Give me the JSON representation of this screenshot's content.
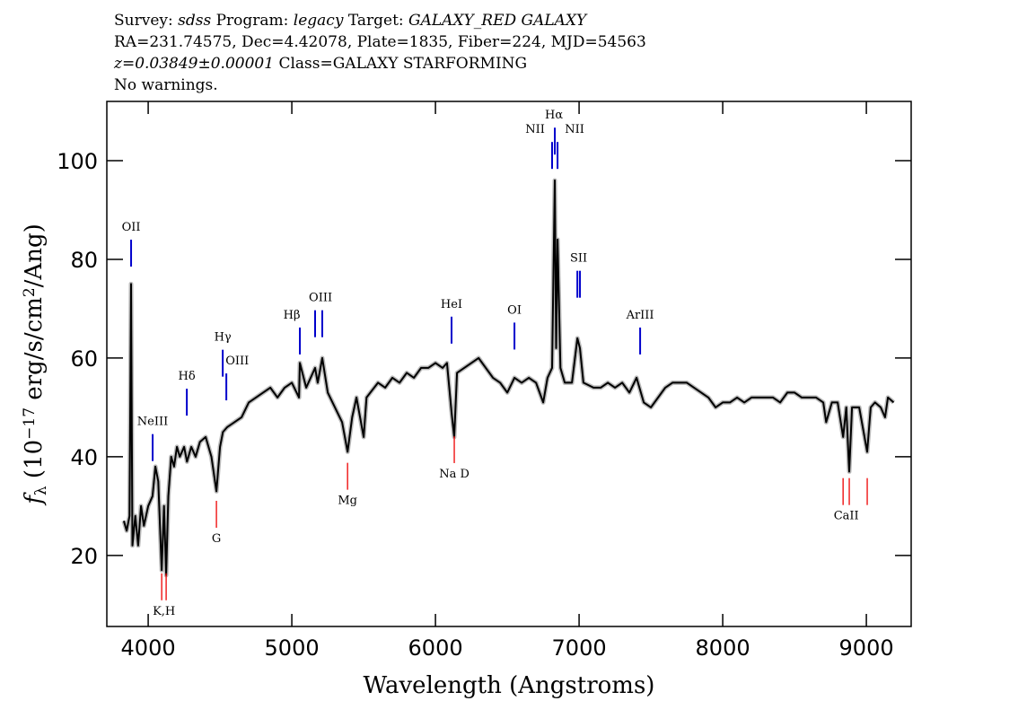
{
  "chart_data": {
    "type": "line",
    "header": [
      [
        {
          "text": "Survey: "
        },
        {
          "text": "sdss",
          "italic": true
        },
        {
          "text": " Program: "
        },
        {
          "text": "legacy",
          "italic": true
        },
        {
          "text": " Target: "
        },
        {
          "text": "GALAXY_RED GALAXY",
          "italic": true
        }
      ],
      [
        {
          "text": "RA=231.74575, Dec=4.42078, Plate=1835, Fiber=224, MJD=54563"
        }
      ],
      [
        {
          "text": "z=0.03849±0.00001",
          "italic": true
        },
        {
          "text": " Class=GALAXY STARFORMING"
        }
      ],
      [
        {
          "text": "No warnings."
        }
      ]
    ],
    "xlabel": "Wavelength (Angstroms)",
    "ylabel": [
      {
        "text": "f",
        "italic": true
      },
      {
        "text": "λ",
        "shift": "sub"
      },
      {
        "text": " (10"
      },
      {
        "text": "−17",
        "shift": "sup"
      },
      {
        "text": " erg/s/cm"
      },
      {
        "text": "2",
        "shift": "sup"
      },
      {
        "text": "/Ang)"
      }
    ],
    "xlim": [
      3712,
      9312
    ],
    "ylim": [
      5.6,
      112
    ],
    "xticks": [
      4000,
      5000,
      6000,
      7000,
      8000,
      9000
    ],
    "yticks": [
      20,
      40,
      60,
      80,
      100
    ],
    "series": [
      {
        "color": "#000000",
        "x": [
          3830,
          3850,
          3870,
          3881,
          3890,
          3910,
          3930,
          3950,
          3970,
          4000,
          4030,
          4050,
          4070,
          4094,
          4110,
          4125,
          4140,
          4160,
          4180,
          4200,
          4220,
          4250,
          4270,
          4300,
          4330,
          4360,
          4400,
          4440,
          4475,
          4500,
          4520,
          4550,
          4600,
          4650,
          4700,
          4750,
          4800,
          4850,
          4900,
          4950,
          5000,
          5050,
          5056,
          5100,
          5162,
          5180,
          5212,
          5250,
          5300,
          5350,
          5388,
          5420,
          5450,
          5500,
          5520,
          5600,
          5650,
          5700,
          5750,
          5800,
          5850,
          5900,
          5950,
          6000,
          6050,
          6080,
          6112,
          6131,
          6150,
          6200,
          6250,
          6300,
          6350,
          6400,
          6450,
          6500,
          6550,
          6600,
          6650,
          6700,
          6750,
          6780,
          6812,
          6831,
          6840,
          6850,
          6870,
          6900,
          6950,
          6988,
          7006,
          7030,
          7100,
          7150,
          7200,
          7250,
          7300,
          7350,
          7400,
          7450,
          7500,
          7550,
          7600,
          7650,
          7700,
          7750,
          7800,
          7850,
          7900,
          7950,
          8000,
          8050,
          8100,
          8150,
          8200,
          8250,
          8300,
          8350,
          8400,
          8450,
          8500,
          8550,
          8600,
          8650,
          8700,
          8720,
          8760,
          8800,
          8838,
          8860,
          8881,
          8900,
          8950,
          9006,
          9030,
          9060,
          9100,
          9130,
          9150,
          9190
        ],
        "values": [
          27,
          25,
          28,
          75,
          22,
          28,
          22,
          30,
          26,
          30,
          32,
          38,
          35,
          17,
          30,
          16,
          32,
          40,
          38,
          42,
          40,
          42,
          39,
          42,
          40,
          43,
          44,
          40,
          33,
          42,
          45,
          46,
          47,
          48,
          51,
          52,
          53,
          54,
          52,
          54,
          55,
          52,
          59,
          54,
          58,
          55,
          60,
          53,
          50,
          47,
          41,
          48,
          52,
          44,
          52,
          55,
          54,
          56,
          55,
          57,
          56,
          58,
          58,
          59,
          58,
          59,
          49,
          44,
          57,
          58,
          59,
          60,
          58,
          56,
          55,
          53,
          56,
          55,
          56,
          55,
          51,
          56,
          58,
          96,
          62,
          84,
          58,
          55,
          55,
          64,
          62,
          55,
          54,
          54,
          55,
          54,
          55,
          53,
          56,
          51,
          50,
          52,
          54,
          55,
          55,
          55,
          54,
          53,
          52,
          50,
          51,
          51,
          52,
          51,
          52,
          52,
          52,
          52,
          51,
          53,
          53,
          52,
          52,
          52,
          51,
          47,
          51,
          51,
          44,
          50,
          37,
          50,
          50,
          41,
          50,
          51,
          50,
          48,
          52,
          51
        ]
      }
    ],
    "annotations": [
      {
        "label": "OII",
        "x": 3881,
        "y": 85.8,
        "lines": [
          3881
        ],
        "color": "#0000cc",
        "kind": "emission"
      },
      {
        "label": "NeIII",
        "x": 4031,
        "y": 46.4,
        "lines": [
          4031
        ],
        "color": "#0000cc",
        "kind": "emission"
      },
      {
        "label": "Hδ",
        "x": 4269,
        "y": 55.6,
        "lines": [
          4269
        ],
        "color": "#0000cc",
        "kind": "emission"
      },
      {
        "label": "Hγ",
        "x": 4519,
        "y": 63.5,
        "lines": [
          4519
        ],
        "color": "#0000cc",
        "kind": "emission"
      },
      {
        "label": "OIII",
        "x": 4620,
        "y": 58.7,
        "lines": [
          4544
        ],
        "color": "#0000cc",
        "kind": "emission"
      },
      {
        "label": "Hβ",
        "x": 5000,
        "y": 68,
        "lines": [
          5056
        ],
        "color": "#0000cc",
        "kind": "emission"
      },
      {
        "label": "OIII",
        "x": 5200,
        "y": 71.5,
        "lines": [
          5162,
          5212
        ],
        "color": "#0000cc",
        "kind": "emission"
      },
      {
        "label": "HeI",
        "x": 6112,
        "y": 70.2,
        "lines": [
          6112
        ],
        "color": "#0000cc",
        "kind": "emission"
      },
      {
        "label": "OI",
        "x": 6550,
        "y": 69,
        "lines": [
          6550
        ],
        "color": "#0000cc",
        "kind": "emission"
      },
      {
        "label": "NII",
        "x": 6694,
        "y": 105.6,
        "lines": [
          6812
        ],
        "color": "#0000cc",
        "kind": "emission"
      },
      {
        "label": "Hα",
        "x": 6825,
        "y": 108.5,
        "lines": [
          6831
        ],
        "color": "#0000cc",
        "kind": "emission"
      },
      {
        "label": "NII",
        "x": 6969,
        "y": 105.6,
        "lines": [
          6850
        ],
        "color": "#0000cc",
        "kind": "emission"
      },
      {
        "label": "SII",
        "x": 6997,
        "y": 79.5,
        "lines": [
          6988,
          7006
        ],
        "color": "#0000cc",
        "kind": "emission"
      },
      {
        "label": "ArIII",
        "x": 7425,
        "y": 68,
        "lines": [
          7425
        ],
        "color": "#0000cc",
        "kind": "emission"
      },
      {
        "label": "K,H",
        "x": 4110,
        "y": 8,
        "lines": [
          4094,
          4125
        ],
        "color": "#ee0000",
        "kind": "absorption"
      },
      {
        "label": "G",
        "x": 4475,
        "y": 22.7,
        "lines": [
          4475
        ],
        "color": "#ee0000",
        "kind": "absorption"
      },
      {
        "label": "Mg",
        "x": 5388,
        "y": 30.4,
        "lines": [
          5388
        ],
        "color": "#ee0000",
        "kind": "absorption"
      },
      {
        "label": "Na D",
        "x": 6131,
        "y": 35.8,
        "lines": [
          6131
        ],
        "color": "#ee0000",
        "kind": "absorption"
      },
      {
        "label": "CaII",
        "x": 8860,
        "y": 27.3,
        "lines": [
          8838,
          8881,
          9006
        ],
        "color": "#ee0000",
        "kind": "absorption"
      }
    ]
  }
}
